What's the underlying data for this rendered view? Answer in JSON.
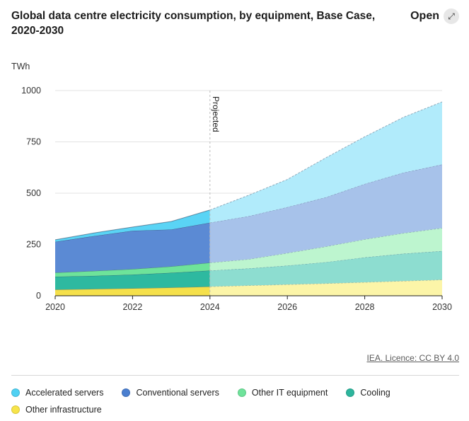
{
  "header": {
    "title": "Global data centre electricity consumption, by equipment, Base Case, 2020-2030",
    "open_label": "Open",
    "open_icon": "expand-arrows-icon"
  },
  "footer": {
    "credit": "IEA. Licence: CC BY 4.0"
  },
  "chart_data": {
    "type": "area",
    "stacked": true,
    "title": "Global data centre electricity consumption, by equipment, Base Case, 2020-2030",
    "ylabel": "TWh",
    "xlabel": "",
    "ylim": [
      0,
      1000
    ],
    "xlim": [
      2020,
      2030
    ],
    "y_ticks": [
      0,
      250,
      500,
      750,
      1000
    ],
    "x_ticks": [
      2020,
      2022,
      2024,
      2026,
      2028,
      2030
    ],
    "grid": true,
    "legend_position": "bottom",
    "annotation": {
      "label": "Projected",
      "x": 2024
    },
    "projection_start": 2024,
    "x": [
      2020,
      2021,
      2022,
      2023,
      2024,
      2025,
      2026,
      2027,
      2028,
      2029,
      2030
    ],
    "series": [
      {
        "name": "Other infrastructure",
        "color": "#f5e04b",
        "color_projected": "#fcf5a8",
        "values": [
          30,
          33,
          36,
          40,
          45,
          50,
          55,
          60,
          66,
          72,
          78
        ]
      },
      {
        "name": "Cooling",
        "color": "#2eb9a0",
        "color_projected": "#8dddd0",
        "values": [
          63,
          64,
          67,
          72,
          78,
          83,
          92,
          104,
          121,
          133,
          140
        ]
      },
      {
        "name": "Other IT equipment",
        "color": "#6ee39a",
        "color_projected": "#bdf5cf",
        "values": [
          20,
          24,
          27,
          31,
          38,
          45,
          61,
          76,
          88,
          100,
          112
        ]
      },
      {
        "name": "Conventional servers",
        "color": "#5b8ad4",
        "color_projected": "#a7c2ea",
        "values": [
          150,
          170,
          187,
          180,
          195,
          210,
          224,
          240,
          270,
          295,
          310
        ]
      },
      {
        "name": "Accelerated servers",
        "color": "#5ad4f5",
        "color_projected": "#b1ebfb",
        "values": [
          10,
          15,
          18,
          39,
          62,
          102,
          135,
          193,
          230,
          270,
          305
        ]
      }
    ]
  },
  "legend": [
    {
      "label": "Accelerated servers",
      "color": "#4fd1f3"
    },
    {
      "label": "Conventional servers",
      "color": "#4a7fd0"
    },
    {
      "label": "Other IT equipment",
      "color": "#6fe39b"
    },
    {
      "label": "Cooling",
      "color": "#2db59d"
    },
    {
      "label": "Other infrastructure",
      "color": "#f7e449"
    }
  ]
}
